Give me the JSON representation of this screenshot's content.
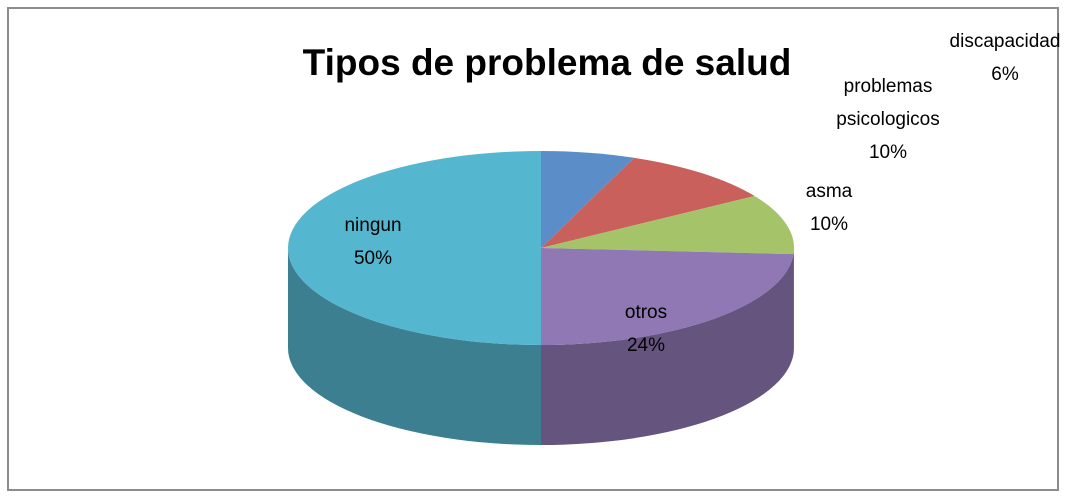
{
  "chart_data": {
    "type": "pie3d",
    "title": "Tipos de problema de salud",
    "categories": [
      "discapacidad",
      "problemas psicologicos",
      "asma",
      "otros",
      "ningun"
    ],
    "values": [
      6,
      10,
      10,
      24,
      50
    ],
    "value_labels": [
      "6%",
      "10%",
      "10%",
      "24%",
      "50%"
    ],
    "colors": [
      "#5b8ec9",
      "#c9605b",
      "#a5c46a",
      "#8f78b4",
      "#55b6cf"
    ]
  }
}
